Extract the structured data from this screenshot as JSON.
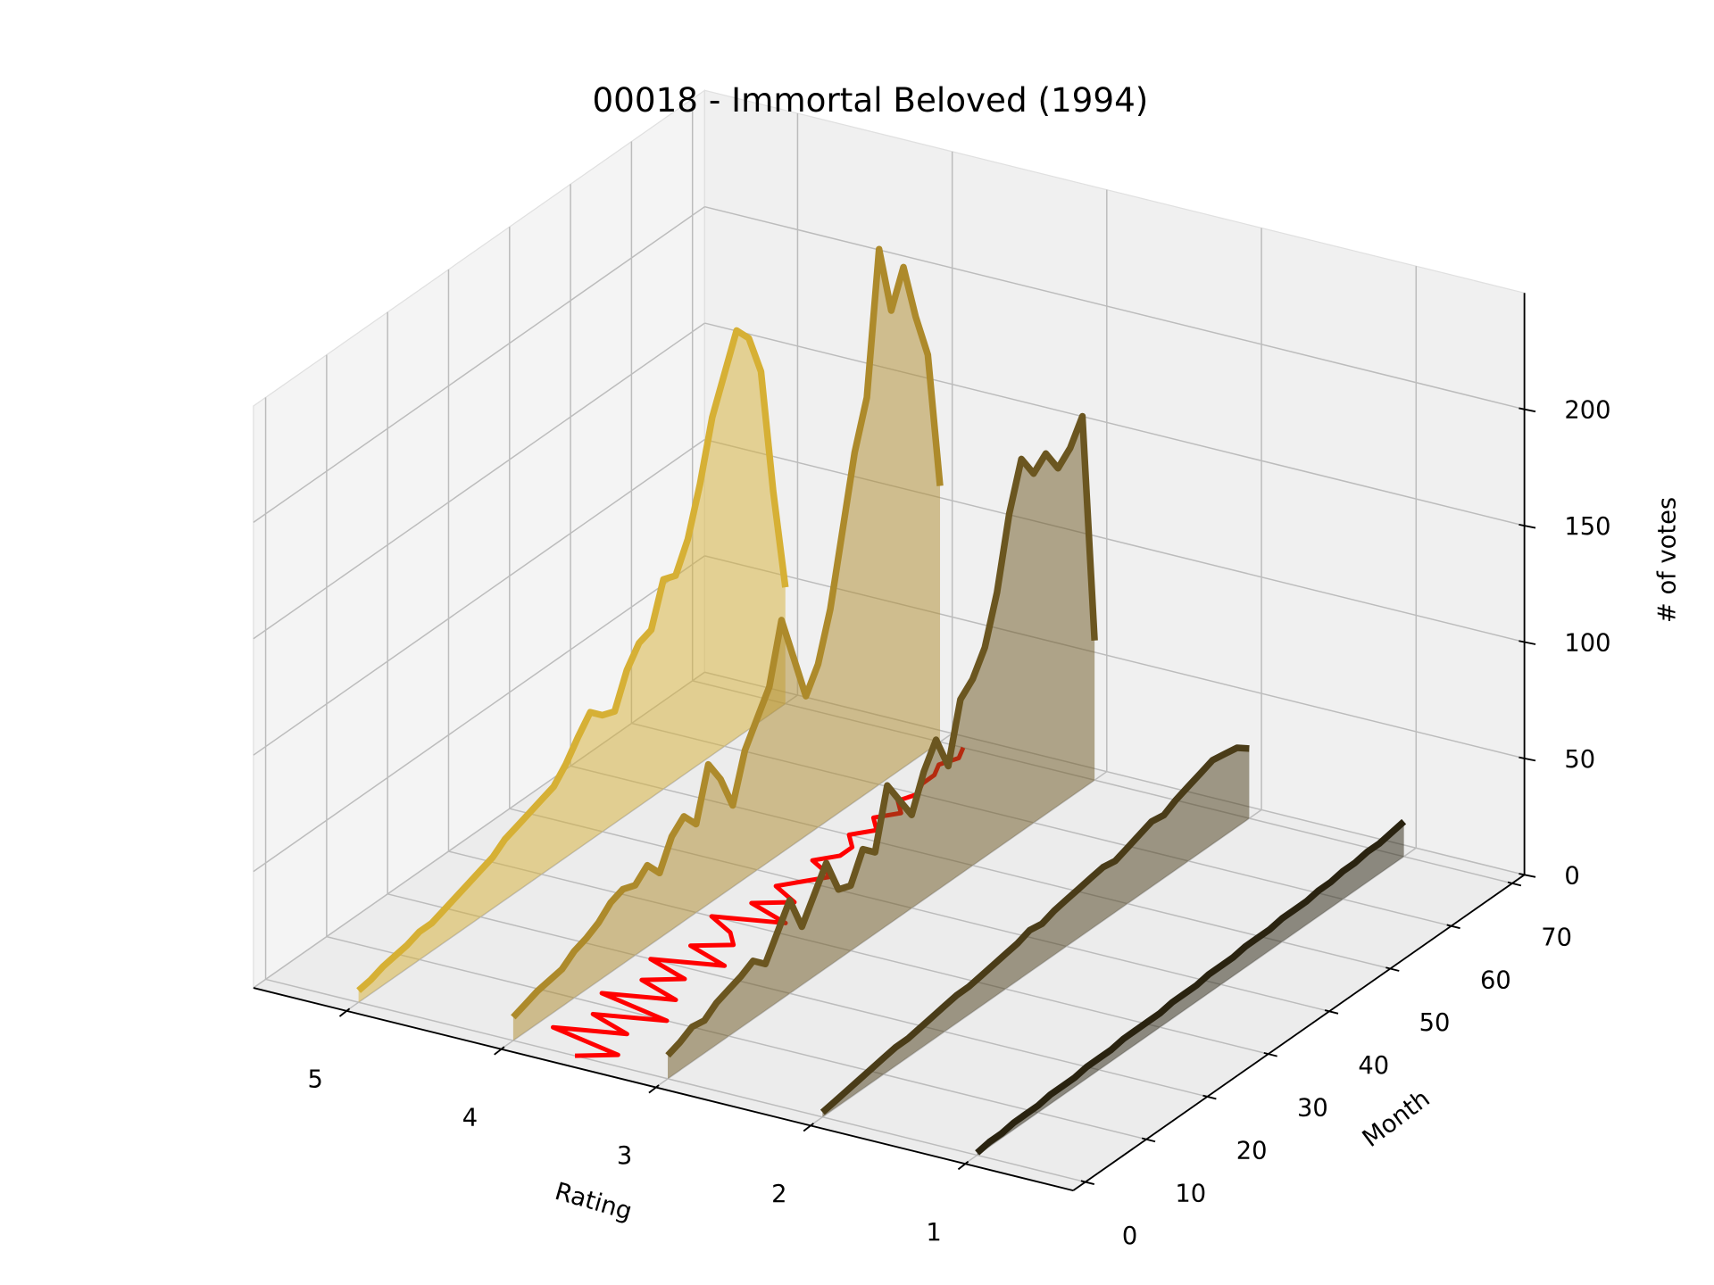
{
  "chart_data": {
    "type": "line3d",
    "title": "00018 - Immortal Beloved (1994)",
    "xlabel": "Month",
    "rating_label": "Rating",
    "zlabel": "# of votes",
    "x": [
      0,
      2,
      4,
      6,
      8,
      10,
      12,
      14,
      16,
      18,
      20,
      22,
      24,
      26,
      28,
      30,
      32,
      34,
      36,
      38,
      40,
      42,
      44,
      46,
      48,
      50,
      52,
      54,
      56,
      58,
      60,
      62,
      64,
      66,
      68,
      70
    ],
    "series": [
      {
        "rating": 5,
        "color": "#d6b035",
        "values": [
          5,
          6,
          8,
          9,
          10,
          12,
          12,
          14,
          16,
          18,
          20,
          22,
          26,
          28,
          30,
          32,
          34,
          40,
          48,
          55,
          50,
          48,
          62,
          70,
          72,
          90,
          88,
          100,
          120,
          145,
          160,
          175,
          168,
          150,
          95,
          50
        ]
      },
      {
        "rating": 4,
        "color": "#ad8a2b",
        "values": [
          10,
          12,
          14,
          15,
          16,
          20,
          22,
          25,
          30,
          32,
          30,
          35,
          28,
          40,
          45,
          38,
          60,
          50,
          35,
          55,
          65,
          75,
          100,
          80,
          60,
          70,
          90,
          120,
          150,
          170,
          230,
          200,
          215,
          190,
          170,
          110
        ]
      },
      {
        "rating": 3,
        "color": "#6b5620",
        "values": [
          10,
          12,
          15,
          14,
          18,
          20,
          22,
          25,
          20,
          30,
          40,
          25,
          35,
          45,
          30,
          28,
          40,
          35,
          60,
          50,
          40,
          55,
          65,
          50,
          75,
          80,
          90,
          110,
          140,
          160,
          150,
          155,
          145,
          150,
          160,
          60
        ]
      },
      {
        "rating": 2,
        "color": "#4a3c18",
        "values": [
          2,
          3,
          4,
          5,
          6,
          7,
          8,
          8,
          9,
          10,
          11,
          12,
          12,
          13,
          14,
          15,
          16,
          18,
          17,
          19,
          20,
          21,
          22,
          23,
          22,
          24,
          26,
          28,
          27,
          30,
          32,
          34,
          36,
          35,
          34,
          30
        ]
      },
      {
        "rating": 1,
        "color": "#2a2310",
        "values": [
          1,
          2,
          2,
          3,
          3,
          3,
          4,
          4,
          4,
          5,
          5,
          5,
          6,
          6,
          6,
          6,
          7,
          7,
          7,
          8,
          8,
          8,
          9,
          9,
          9,
          10,
          10,
          10,
          11,
          11,
          12,
          12,
          13,
          13,
          14,
          15
        ]
      }
    ],
    "mean_rating": {
      "color": "#ff0000",
      "values": [
        3.6,
        3.4,
        3.9,
        3.5,
        3.8,
        3.4,
        3.9,
        3.5,
        3.8,
        3.6,
        3.9,
        3.5,
        3.8,
        3.6,
        3.7,
        3.9,
        3.5,
        3.8,
        3.6,
        3.8,
        3.7,
        3.6,
        3.8,
        3.7,
        3.7,
        3.8,
        3.7,
        3.8,
        3.7,
        3.8,
        3.75,
        3.8,
        3.8,
        3.85,
        3.8,
        3.85
      ]
    },
    "rating_lim": [
      0.3,
      5.6
    ],
    "rating_ticks": [
      1,
      2,
      3,
      4,
      5
    ],
    "xlim": [
      -2,
      72
    ],
    "xticks": [
      0,
      10,
      20,
      30,
      40,
      50,
      60,
      70
    ],
    "zlim": [
      0,
      250
    ],
    "zticks": [
      0,
      50,
      100,
      150,
      200
    ],
    "grid": true
  }
}
